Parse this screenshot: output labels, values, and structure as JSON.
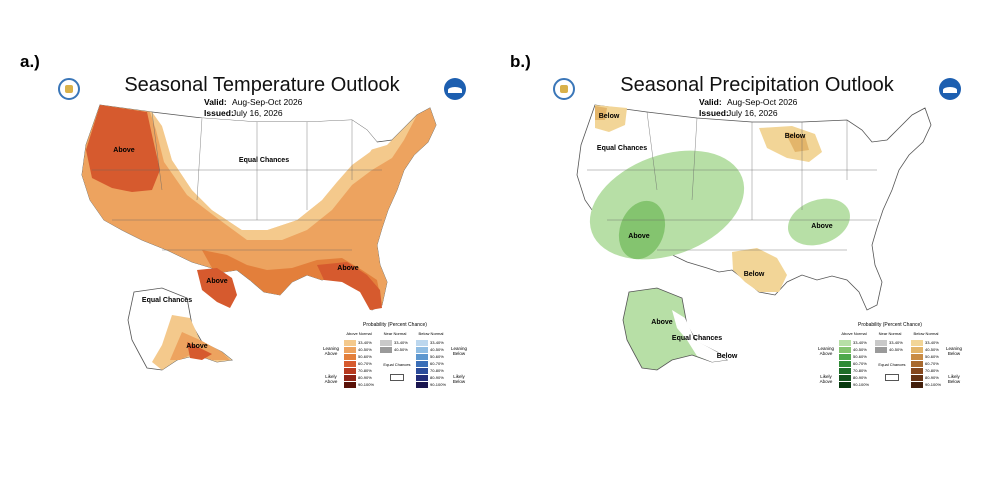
{
  "panels": {
    "a": {
      "label": "a.)",
      "title": "Seasonal Temperature Outlook",
      "valid_label": "Valid:",
      "valid_value": "Aug-Sep-Oct 2026",
      "issued_label": "Issued:",
      "issued_value": "July 16, 2026",
      "region_labels": [
        "Above",
        "Equal Chances",
        "Above",
        "Above",
        "Equal Chances",
        "Above"
      ]
    },
    "b": {
      "label": "b.)",
      "title": "Seasonal Precipitation Outlook",
      "valid_label": "Valid:",
      "valid_value": "Aug-Sep-Oct 2026",
      "issued_label": "Issued:",
      "issued_value": "July 16, 2026",
      "region_labels": [
        "Below",
        "Equal Chances",
        "Below",
        "Above",
        "Above",
        "Below",
        "Above",
        "Equal Chances",
        "Below"
      ]
    }
  },
  "legend_temp": {
    "title": "Probability (Percent Chance)",
    "above_header": "Above Normal",
    "near_header": "Near Normal",
    "below_header": "Below Normal",
    "leaning_above": "Leaning Above",
    "likely_above": "Likely Above",
    "leaning_below": "Leaning Below",
    "likely_below": "Likely Below",
    "equal_chances": "Equal Chances",
    "ranges": [
      "33-40%",
      "40-50%",
      "50-60%",
      "60-70%",
      "70-80%",
      "80-90%",
      "90-100%"
    ],
    "near_ranges": [
      "33-40%",
      "40-50%"
    ],
    "above_colors": [
      "#f4c98c",
      "#eda35f",
      "#e37f3b",
      "#d65a2e",
      "#b7391f",
      "#8e2316",
      "#5a1208"
    ],
    "below_colors": [
      "#bcd7ee",
      "#90bde3",
      "#5d97cf",
      "#3b6fb8",
      "#2b4b9a",
      "#232d7a",
      "#1a1650"
    ],
    "near_colors": [
      "#c9c9c9",
      "#9a9a9a"
    ]
  },
  "legend_precip": {
    "title": "Probability (Percent Chance)",
    "above_header": "Above Normal",
    "near_header": "Near Normal",
    "below_header": "Below Normal",
    "leaning_above": "Leaning Above",
    "likely_above": "Likely Above",
    "leaning_below": "Leaning Below",
    "likely_below": "Likely Below",
    "equal_chances": "Equal Chances",
    "ranges": [
      "33-40%",
      "40-50%",
      "50-60%",
      "60-70%",
      "70-80%",
      "80-90%",
      "90-100%"
    ],
    "near_ranges": [
      "33-40%",
      "40-50%"
    ],
    "above_colors": [
      "#b7dfa6",
      "#84c46f",
      "#4ea84b",
      "#2f8a36",
      "#1e6d28",
      "#12521c",
      "#093a10"
    ],
    "below_colors": [
      "#f2d597",
      "#e3b56a",
      "#c98c45",
      "#a8692e",
      "#85481e",
      "#653314",
      "#43200c"
    ],
    "near_colors": [
      "#c9c9c9",
      "#9a9a9a"
    ]
  },
  "map_colors": {
    "land_outline": "#555555",
    "temp_above_lean": "#f4c98c",
    "temp_above_40": "#eda35f",
    "temp_above_50": "#e37f3b",
    "temp_above_60": "#d65a2e",
    "precip_above_lean": "#b7dfa6",
    "precip_above_40": "#84c46f",
    "precip_below_lean": "#f2d597",
    "precip_below_40": "#e3b56a"
  }
}
